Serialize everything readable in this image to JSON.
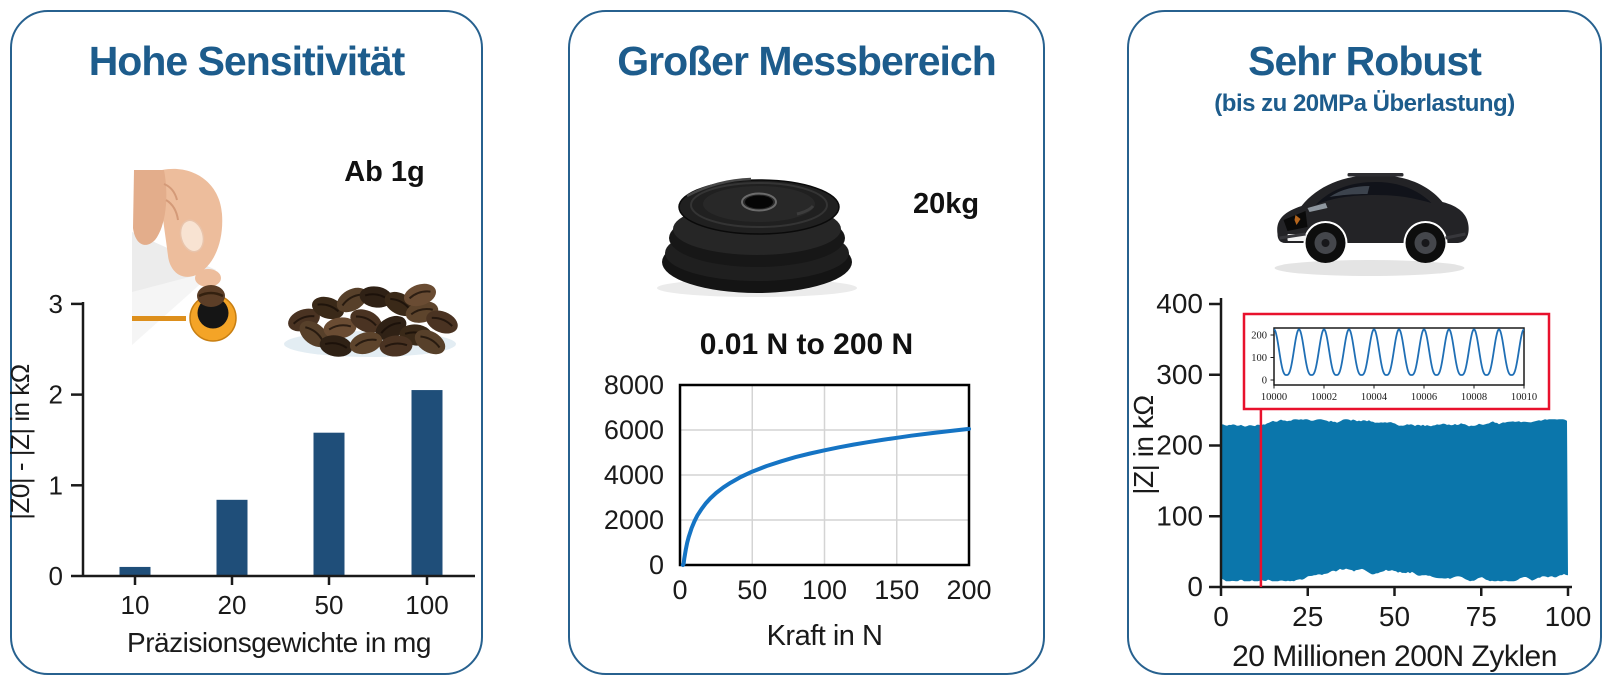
{
  "colors": {
    "title_blue": "#1D5C8C",
    "card_border": "#27618F",
    "bar_blue": "#1F4E79",
    "line_blue": "#1574C4",
    "band_blue": "#0B76AB",
    "inset_line_blue": "#1F6FB5",
    "marker_red": "#E8112D",
    "grid_gray": "#D4D4D4",
    "axis_black": "#1A1A1A"
  },
  "panels": [
    {
      "title": "Hohe Sensitivität",
      "annotation": "Ab 1g",
      "images": [
        "finger-placing-bean-on-sensor-photo",
        "coffee-beans-photo"
      ]
    },
    {
      "title": "Großer Messbereich",
      "annotation": "20kg",
      "range_label": "0.01 N to 200 N",
      "images": [
        "weight-plates-photo"
      ]
    },
    {
      "title": "Sehr Robust",
      "subtitle": "(bis zu 20MPa Überlastung)",
      "images": [
        "black-suv-car-photo"
      ]
    }
  ],
  "chart_data": [
    {
      "type": "bar",
      "panel": "Hohe Sensitivität",
      "categories": [
        "10",
        "20",
        "50",
        "100"
      ],
      "values": [
        0.1,
        0.84,
        1.58,
        2.05
      ],
      "xlabel": "Präzisionsgewichte in mg",
      "ylabel": "|Z0| - |Z| in kΩ",
      "yticks": [
        0,
        1,
        2,
        3
      ],
      "ylim": [
        0,
        3
      ],
      "grid": false,
      "legend": "none"
    },
    {
      "type": "line",
      "panel": "Großer Messbereich",
      "x": [
        2,
        2.5,
        3,
        4,
        5,
        6,
        8,
        10,
        12,
        15,
        18,
        21,
        25,
        30,
        35,
        42,
        50,
        60,
        70,
        80,
        90,
        100,
        110,
        120,
        130,
        140,
        150,
        160,
        175,
        190,
        200
      ],
      "y": [
        0,
        45,
        295,
        690,
        995,
        1245,
        1640,
        1945,
        2195,
        2500,
        2750,
        2960,
        3200,
        3450,
        3660,
        3910,
        4150,
        4400,
        4610,
        4795,
        4955,
        5100,
        5230,
        5350,
        5460,
        5560,
        5655,
        5745,
        5865,
        5980,
        6050
      ],
      "xlabel": "Kraft in N",
      "ylabel": "",
      "xticks": [
        0,
        50,
        100,
        150,
        200
      ],
      "yticks": [
        0,
        2000,
        4000,
        6000,
        8000
      ],
      "xlim": [
        0,
        200
      ],
      "ylim": [
        0,
        8000
      ],
      "grid": true,
      "legend": "none"
    },
    {
      "type": "noise-band",
      "panel": "Sehr Robust",
      "xlabel": "20 Millionen 200N Zyklen",
      "ylabel": "|Z| in kΩ",
      "xticks": [
        0,
        25,
        50,
        75,
        100
      ],
      "yticks": [
        0,
        100,
        200,
        300,
        400
      ],
      "xlim": [
        0,
        100
      ],
      "ylim": [
        0,
        400
      ],
      "band": {
        "top": 230,
        "bottom": 18
      },
      "marker_x": 11.5,
      "inset": {
        "xticks": [
          10000,
          10002,
          10004,
          10006,
          10008,
          10010
        ],
        "yticks": [
          0,
          100,
          200
        ],
        "xlim": [
          10000,
          10010
        ],
        "ylim": [
          0,
          240
        ],
        "wave_min": 22,
        "wave_max": 225,
        "cycles": 10
      },
      "grid": false,
      "legend": "none"
    }
  ]
}
